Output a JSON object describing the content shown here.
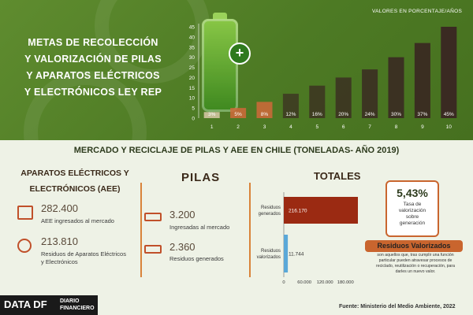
{
  "header": {
    "title_lines": [
      "METAS DE RECOLECCIÓN",
      "Y VALORIZACIÓN DE PILAS",
      "Y APARATOS ELÉCTRICOS",
      "Y ELECTRÓNICOS LEY REP"
    ],
    "values_title": "VALORES EN PORCENTAJE/AÑOS"
  },
  "section_title": "MERCADO Y RECICLAJE DE PILAS Y AEE EN CHILE (TONELADAS- AÑO 2019)",
  "aee": {
    "heading_lines": [
      "APARATOS ELÉCTRICOS Y",
      "ELECTRÓNICOS (AEE)"
    ],
    "market_value": "282.400",
    "market_label": "AEE ingresados al mercado",
    "waste_value": "213.810",
    "waste_label_lines": [
      "Residuos de Aparatos Eléctricos",
      "y Electrónicos"
    ]
  },
  "pilas": {
    "heading": "PILAS",
    "market_value": "3.200",
    "market_label": "Ingresadas al mercado",
    "waste_value": "2.360",
    "waste_label": "Residuos generados"
  },
  "totales": {
    "heading": "TOTALES",
    "percent": "5,43%",
    "percent_label_lines": [
      "Tasa de",
      "valorización",
      "sobre",
      "generación"
    ],
    "rv_title": "Residuos Valorizados",
    "rv_desc_lines": [
      "son aquellos que, tras cumplir una función",
      "particular pueden atravesar procesos de",
      "reciclado, reutilización o recuperación, para",
      "darles un nuevo valor."
    ]
  },
  "footer": {
    "source": "Fuente: Ministerio del Medio Ambiente, 2022",
    "logo_left": "DATA DF",
    "logo_right_lines": [
      "DIARIO",
      "FINANCIERO"
    ]
  },
  "colors": {
    "bar_dark": "#3a2a22",
    "bar_light": "#d9c9a8",
    "bar_accent": "#d0683a",
    "generated_bar": "#9b2a12",
    "valorized_bar": "#5aa8d8"
  },
  "chart_data": [
    {
      "type": "bar",
      "title": "VALORES EN PORCENTAJE/AÑOS",
      "categories": [
        "1",
        "2",
        "3",
        "4",
        "5",
        "6",
        "7",
        "8",
        "9",
        "10"
      ],
      "values": [
        3,
        5,
        8,
        12,
        16,
        20,
        24,
        30,
        37,
        45
      ],
      "labels": [
        "3%",
        "5%",
        "8%",
        "12%",
        "16%",
        "20%",
        "24%",
        "30%",
        "37%",
        "45%"
      ],
      "yticks": [
        0,
        5,
        10,
        15,
        20,
        25,
        30,
        35,
        40,
        45
      ],
      "ylim": [
        0,
        45
      ],
      "grid": false
    },
    {
      "type": "bar",
      "orientation": "horizontal",
      "title": "TOTALES",
      "categories": [
        "Residuos generados",
        "Residuos valorizados"
      ],
      "values": [
        216170,
        11744
      ],
      "labels": [
        "216.170",
        "11.744"
      ],
      "xticks": [
        "0",
        "60.000",
        "120.000",
        "180.000"
      ],
      "xtick_values": [
        0,
        60000,
        120000,
        180000
      ],
      "xlim": [
        0,
        216170
      ]
    }
  ]
}
